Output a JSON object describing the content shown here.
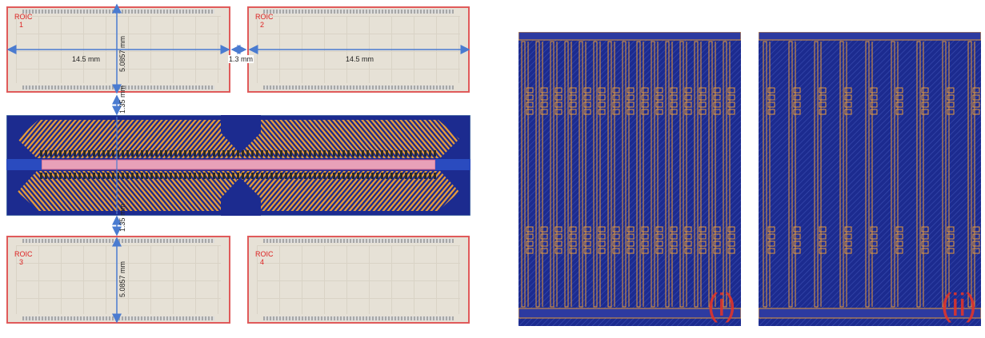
{
  "roic_blocks": [
    {
      "label_line1": "ROIC",
      "label_line2": "1"
    },
    {
      "label_line1": "ROIC",
      "label_line2": "2"
    },
    {
      "label_line1": "ROIC",
      "label_line2": "3"
    },
    {
      "label_line1": "ROIC",
      "label_line2": "4"
    }
  ],
  "dimensions": {
    "width_left": "14.5 mm",
    "width_right": "14.5 mm",
    "gap": "1.3 mm",
    "height_top": "5.0857 mm",
    "height_bottom": "5.0857 mm",
    "spacing_top": "1.35 mm",
    "spacing_bottom": "1.35 mm"
  },
  "layouts": {
    "left_label": "(i)",
    "right_label": "(ii)"
  },
  "colors": {
    "roic_fill": "#e6e1d6",
    "roic_border": "#e05a5a",
    "interconnect_bg": "#1c2b8f",
    "trace_orange": "#e59a3a",
    "label_red": "#e0342a"
  }
}
